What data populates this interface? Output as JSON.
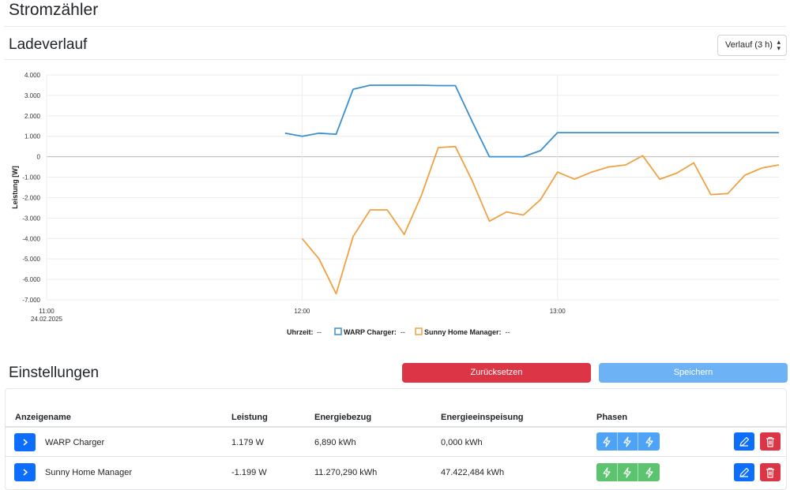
{
  "page": {
    "title": "Stromzähler"
  },
  "history": {
    "title": "Ladeverlauf",
    "range_select": "Verlauf (3 h)"
  },
  "chart_data": {
    "type": "line",
    "ylabel": "Leistung [W]",
    "xlabel": "",
    "ylim": [
      -7000,
      4000
    ],
    "y_ticks": [
      4000,
      3000,
      2000,
      1000,
      0,
      -1000,
      -2000,
      -3000,
      -4000,
      -5000,
      -6000,
      -7000
    ],
    "y_tick_labels": [
      "4.000",
      "3.000",
      "2.000",
      "1.000",
      "0",
      "-1.000",
      "-2.000",
      "-3.000",
      "-4.000",
      "-5.000",
      "-6.000",
      "-7.000"
    ],
    "x_ticks": [
      {
        "t": 660,
        "label": "11:00",
        "sublabel": "24.02.2025"
      },
      {
        "t": 720,
        "label": "12:00",
        "sublabel": ""
      },
      {
        "t": 780,
        "label": "13:00",
        "sublabel": ""
      }
    ],
    "xlim": [
      660,
      832
    ],
    "legend": {
      "time_label": "Uhrzeit:",
      "time_value": "--",
      "placement": "bottom"
    },
    "series": [
      {
        "name": "WARP Charger",
        "value": "--",
        "color": "#3a8fd1",
        "points": [
          [
            716,
            1150
          ],
          [
            720,
            1000
          ],
          [
            724,
            1150
          ],
          [
            728,
            1100
          ],
          [
            732,
            3300
          ],
          [
            736,
            3500
          ],
          [
            740,
            3500
          ],
          [
            744,
            3500
          ],
          [
            748,
            3500
          ],
          [
            752,
            3480
          ],
          [
            756,
            3480
          ],
          [
            760,
            1700
          ],
          [
            764,
            0
          ],
          [
            768,
            0
          ],
          [
            772,
            0
          ],
          [
            776,
            300
          ],
          [
            780,
            1180
          ],
          [
            790,
            1180
          ],
          [
            800,
            1180
          ],
          [
            810,
            1180
          ],
          [
            820,
            1180
          ],
          [
            832,
            1180
          ]
        ]
      },
      {
        "name": "Sunny Home Manager",
        "value": "--",
        "color": "#f0a142",
        "points": [
          [
            720,
            -4000
          ],
          [
            724,
            -5000
          ],
          [
            728,
            -6700
          ],
          [
            732,
            -3900
          ],
          [
            736,
            -2600
          ],
          [
            740,
            -2600
          ],
          [
            744,
            -3800
          ],
          [
            748,
            -1900
          ],
          [
            752,
            450
          ],
          [
            756,
            500
          ],
          [
            760,
            -1200
          ],
          [
            764,
            -3150
          ],
          [
            768,
            -2700
          ],
          [
            772,
            -2850
          ],
          [
            776,
            -2100
          ],
          [
            780,
            -750
          ],
          [
            784,
            -1100
          ],
          [
            788,
            -750
          ],
          [
            792,
            -500
          ],
          [
            796,
            -400
          ],
          [
            800,
            50
          ],
          [
            804,
            -1100
          ],
          [
            808,
            -800
          ],
          [
            812,
            -300
          ],
          [
            816,
            -1850
          ],
          [
            820,
            -1800
          ],
          [
            824,
            -900
          ],
          [
            828,
            -550
          ],
          [
            832,
            -400
          ]
        ]
      }
    ]
  },
  "settings": {
    "title": "Einstellungen",
    "reset_label": "Zurücksetzen",
    "save_label": "Speichern",
    "columns": {
      "name": "Anzeigename",
      "power": "Leistung",
      "import": "Energiebezug",
      "export": "Energieeinspeisung",
      "phases": "Phasen"
    },
    "rows": [
      {
        "name": "WARP Charger",
        "power": "1.179 W",
        "import": "6,890 kWh",
        "export": "0,000 kWh",
        "phase_color": "#4fa3f7"
      },
      {
        "name": "Sunny Home Manager",
        "power": "-1.199 W",
        "import": "11.270,290 kWh",
        "export": "47.422,484 kWh",
        "phase_color": "#5cc46e"
      }
    ],
    "icons": {
      "expand": "chevron-right-icon",
      "phase": "lightning-icon",
      "edit": "pencil-icon",
      "delete": "trash-icon"
    }
  }
}
